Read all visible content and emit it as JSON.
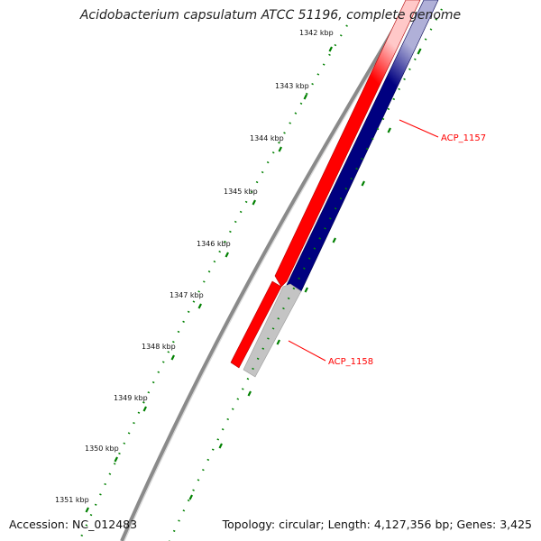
{
  "title": "Acidobacterium capsulatum ATCC 51196, complete genome",
  "footer": {
    "accession": "Accession: NC_012483",
    "summary": "Topology: circular; Length: 4,127,356 bp; Genes: 3,425"
  },
  "ruler": {
    "tick_labels": [
      "1342 kbp",
      "1343 kbp",
      "1344 kbp",
      "1345 kbp",
      "1346 kbp",
      "1347 kbp",
      "1348 kbp",
      "1349 kbp",
      "1350 kbp",
      "1351 kbp"
    ]
  },
  "features": [
    {
      "label": "ACP_1157"
    },
    {
      "label": "ACP_1158"
    }
  ],
  "colors": {
    "forward_gene": "#ff0000",
    "reverse_gene": "#000080",
    "other_feature": "#c0c0c0",
    "backbone": "#808080",
    "ticks": "#008000",
    "label": "#ff0000"
  }
}
